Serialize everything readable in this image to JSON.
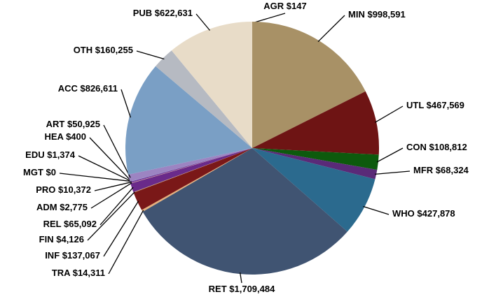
{
  "chart_data": {
    "type": "pie",
    "categories": [
      "AGR",
      "MIN",
      "UTL",
      "CON",
      "MFR",
      "WHO",
      "RET",
      "TRA",
      "INF",
      "FIN",
      "REL",
      "ADM",
      "PRO",
      "MGT",
      "EDU",
      "HEA",
      "ART",
      "ACC",
      "OTH",
      "PUB"
    ],
    "values": [
      147,
      998591,
      467569,
      108812,
      68324,
      427878,
      1709484,
      14311,
      137067,
      4126,
      65092,
      2775,
      10372,
      0,
      1374,
      400,
      50925,
      826611,
      160255,
      622631
    ],
    "value_labels": [
      "$147",
      "$998,591",
      "$467,569",
      "$108,812",
      "$68,324",
      "$427,878",
      "$1,709,484",
      "$14,311",
      "$137,067",
      "$4,126",
      "$65,092",
      "$2,775",
      "$10,372",
      "$0",
      "$1,374",
      "$400",
      "$50,925",
      "$826,611",
      "$160,255",
      "$622,631"
    ],
    "colors": [
      "#c9b48a",
      "#a89166",
      "#6e1414",
      "#0d5a0d",
      "#5a2a78",
      "#2b6a8e",
      "#405472",
      "#e6b07c",
      "#7a1818",
      "#c8a070",
      "#6a2a8a",
      "#d9b87a",
      "#7a3aa0",
      "#888888",
      "#4a8aa8",
      "#bfc8d8",
      "#9c84c2",
      "#7a9fc5",
      "#b6bac2",
      "#e8dcc8"
    ]
  }
}
